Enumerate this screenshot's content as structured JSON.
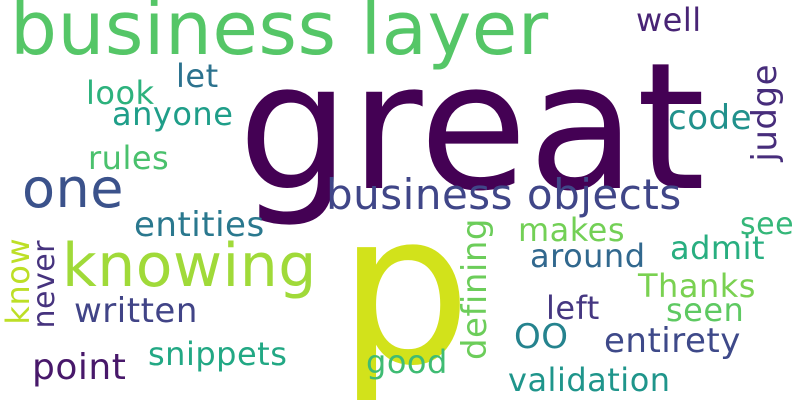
{
  "words": {
    "business_layer": {
      "text": "business layer",
      "color": "#55c667"
    },
    "great": {
      "text": "great",
      "color": "#440154"
    },
    "p": {
      "text": "p",
      "color": "#d2e21b"
    },
    "one": {
      "text": "one",
      "color": "#3b528b"
    },
    "knowing": {
      "text": "knowing",
      "color": "#a0da39"
    },
    "business_objects": {
      "text": "business objects",
      "color": "#404688"
    },
    "well": {
      "text": "well",
      "color": "#482475"
    },
    "let": {
      "text": "let",
      "color": "#2c728e"
    },
    "look": {
      "text": "look",
      "color": "#2db27d"
    },
    "anyone": {
      "text": "anyone",
      "color": "#1f9e89"
    },
    "rules": {
      "text": "rules",
      "color": "#4ac16d"
    },
    "code": {
      "text": "code",
      "color": "#21918c"
    },
    "judge": {
      "text": "judge",
      "color": "#472d7b"
    },
    "entities": {
      "text": "entities",
      "color": "#2a788e"
    },
    "makes": {
      "text": "makes",
      "color": "#73d056"
    },
    "see": {
      "text": "see",
      "color": "#35b779"
    },
    "around": {
      "text": "around",
      "color": "#31688e"
    },
    "admit": {
      "text": "admit",
      "color": "#28ae80"
    },
    "thanks": {
      "text": "Thanks",
      "color": "#7ad151"
    },
    "seen": {
      "text": "seen",
      "color": "#5ec962"
    },
    "left": {
      "text": "left",
      "color": "#453781"
    },
    "written": {
      "text": "written",
      "color": "#414487"
    },
    "oo": {
      "text": "OO",
      "color": "#25838e"
    },
    "entirety": {
      "text": "entirety",
      "color": "#3e4989"
    },
    "snippets": {
      "text": "snippets",
      "color": "#22a884"
    },
    "point": {
      "text": "point",
      "color": "#48186a"
    },
    "good": {
      "text": "good",
      "color": "#3fbc73"
    },
    "validation": {
      "text": "validation",
      "color": "#1f958b"
    },
    "defining": {
      "text": "defining",
      "color": "#6ccd5a"
    },
    "know": {
      "text": "know",
      "color": "#bddf26"
    },
    "never": {
      "text": "never",
      "color": "#46337e"
    }
  }
}
